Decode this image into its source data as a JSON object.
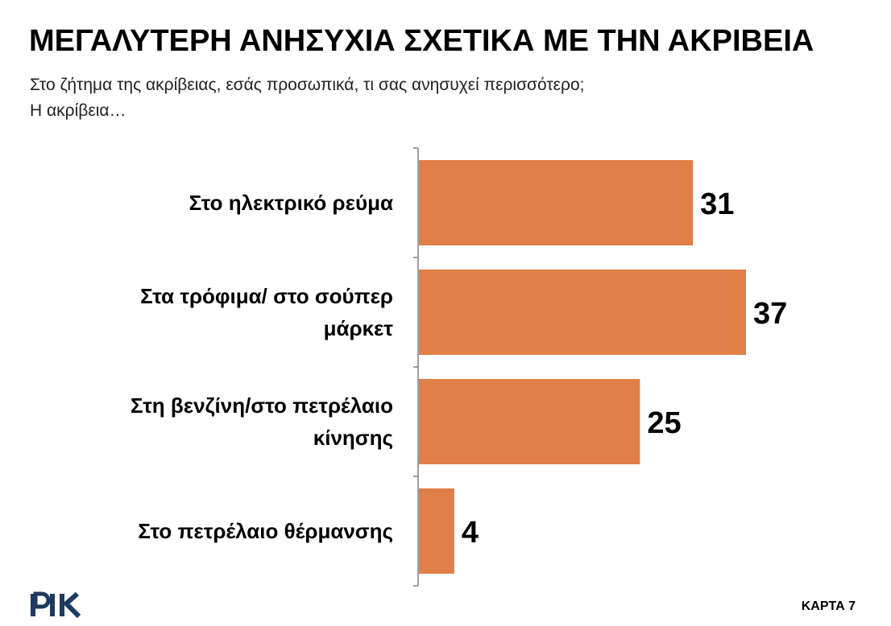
{
  "header": {
    "title": "ΜΕΓΑΛΥΤΕΡΗ ΑΝΗΣΥΧΙΑ ΣΧΕΤΙΚΑ ΜΕ ΤΗΝ ΑΚΡΙΒΕΙΑ",
    "subtitle_line1": "Στο ζήτημα της ακρίβειας, εσάς προσωπικά, τι σας ανησυχεί περισσότερο;",
    "subtitle_line2": "Η ακρίβεια…"
  },
  "footer": {
    "logo_text": "ΡΙΚ",
    "card_label": "ΚΑΡΤΑ 7"
  },
  "colors": {
    "bar": "#E07F48",
    "axis": "#7f7f7f",
    "logo": "#1e3a5f"
  },
  "chart_data": {
    "type": "bar",
    "orientation": "horizontal",
    "categories": [
      [
        "Στο ηλεκτρικό ρεύμα"
      ],
      [
        "Στα τρόφιμα/ στο σούπερ",
        "μάρκετ"
      ],
      [
        "Στη βενζίνη/στο πετρέλαιο",
        "κίνησης"
      ],
      [
        "Στο πετρέλαιο θέρμανσης"
      ]
    ],
    "values": [
      31,
      37,
      25,
      4
    ],
    "data_labels": [
      "31",
      "37",
      "25",
      "4"
    ],
    "xlim": [
      0,
      37
    ],
    "grid": false,
    "legend": "none"
  }
}
